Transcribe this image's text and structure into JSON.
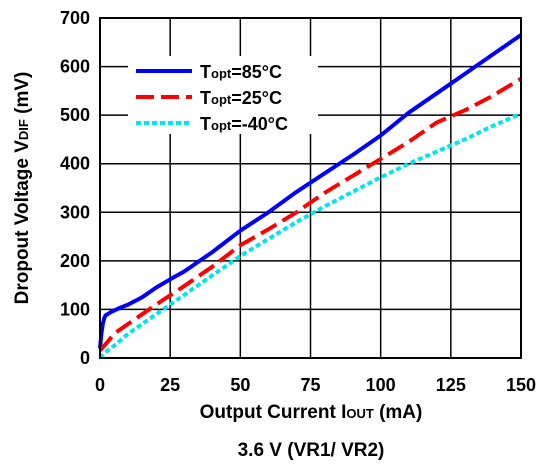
{
  "chart_data": {
    "type": "line",
    "title": "",
    "caption": "3.6 V (VR1/ VR2)",
    "xlabel": {
      "main": "Output Current I",
      "sub": "OUT",
      "unit": " (mA)"
    },
    "ylabel": {
      "main": "Dropout Voltage V",
      "sub": "DIF",
      "unit": " (mV)"
    },
    "xlim": [
      0,
      150
    ],
    "ylim": [
      0,
      700
    ],
    "x_ticks": [
      0,
      25,
      50,
      75,
      100,
      125,
      150
    ],
    "y_ticks": [
      0,
      100,
      200,
      300,
      400,
      500,
      600,
      700
    ],
    "grid": true,
    "legend_position": "top-left",
    "series": [
      {
        "name": "T",
        "name_sub": "opt",
        "name_suffix": "=85°C",
        "color": "#0000ff",
        "dash": "solid",
        "points": [
          [
            0,
            20
          ],
          [
            0.5,
            50
          ],
          [
            1,
            70
          ],
          [
            1.5,
            82
          ],
          [
            2,
            88
          ],
          [
            4,
            95
          ],
          [
            7,
            103
          ],
          [
            10,
            110
          ],
          [
            15,
            125
          ],
          [
            20,
            145
          ],
          [
            25,
            162
          ],
          [
            30,
            178
          ],
          [
            40,
            218
          ],
          [
            50,
            262
          ],
          [
            60,
            300
          ],
          [
            70,
            342
          ],
          [
            80,
            380
          ],
          [
            90,
            418
          ],
          [
            100,
            458
          ],
          [
            110,
            505
          ],
          [
            120,
            545
          ],
          [
            130,
            585
          ],
          [
            140,
            625
          ],
          [
            150,
            665
          ]
        ]
      },
      {
        "name": "T",
        "name_sub": "opt",
        "name_suffix": "=25°C",
        "color": "#ff0000",
        "dash": "dashed",
        "points": [
          [
            0,
            15
          ],
          [
            1,
            22
          ],
          [
            3,
            35
          ],
          [
            5,
            50
          ],
          [
            10,
            70
          ],
          [
            20,
            110
          ],
          [
            30,
            148
          ],
          [
            40,
            188
          ],
          [
            50,
            232
          ],
          [
            60,
            265
          ],
          [
            70,
            300
          ],
          [
            80,
            340
          ],
          [
            90,
            375
          ],
          [
            100,
            410
          ],
          [
            110,
            445
          ],
          [
            120,
            485
          ],
          [
            130,
            510
          ],
          [
            140,
            540
          ],
          [
            150,
            575
          ]
        ]
      },
      {
        "name": "T",
        "name_sub": "opt",
        "name_suffix": "=-40°C",
        "color": "#00e5ee",
        "dash": "dotted",
        "points": [
          [
            0,
            0
          ],
          [
            2,
            12
          ],
          [
            5,
            25
          ],
          [
            10,
            50
          ],
          [
            20,
            90
          ],
          [
            30,
            130
          ],
          [
            40,
            170
          ],
          [
            50,
            210
          ],
          [
            60,
            245
          ],
          [
            70,
            280
          ],
          [
            80,
            312
          ],
          [
            90,
            342
          ],
          [
            100,
            372
          ],
          [
            110,
            400
          ],
          [
            120,
            425
          ],
          [
            130,
            450
          ],
          [
            140,
            478
          ],
          [
            150,
            503
          ]
        ]
      }
    ]
  }
}
